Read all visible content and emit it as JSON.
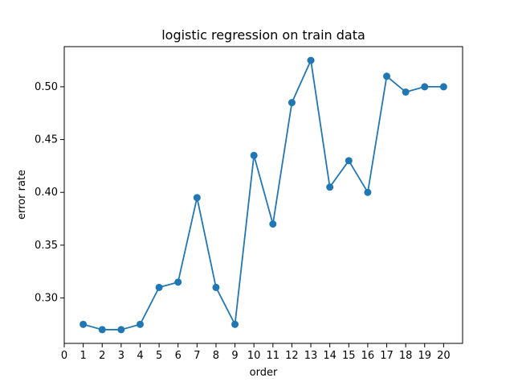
{
  "chart_data": {
    "type": "line",
    "title": "logistic regression on train data",
    "xlabel": "order",
    "ylabel": "error rate",
    "x": [
      1,
      2,
      3,
      4,
      5,
      6,
      7,
      8,
      9,
      10,
      11,
      12,
      13,
      14,
      15,
      16,
      17,
      18,
      19,
      20
    ],
    "series": [
      {
        "values": [
          0.275,
          0.27,
          0.27,
          0.275,
          0.31,
          0.315,
          0.395,
          0.31,
          0.275,
          0.435,
          0.37,
          0.485,
          0.525,
          0.405,
          0.43,
          0.4,
          0.51,
          0.495,
          0.5,
          0.5
        ],
        "color": "#1f77b4",
        "marker": "circle"
      }
    ],
    "xticks": [
      0,
      1,
      2,
      3,
      4,
      5,
      6,
      7,
      8,
      9,
      10,
      11,
      12,
      13,
      14,
      15,
      16,
      17,
      18,
      19,
      20
    ],
    "yticks": [
      0.3,
      0.35,
      0.4,
      0.45,
      0.5
    ],
    "ytick_labels": [
      "0.30",
      "0.35",
      "0.40",
      "0.45",
      "0.50"
    ],
    "xlim": [
      0,
      21
    ],
    "ylim": [
      0.257,
      0.538
    ],
    "grid": false,
    "legend": "none"
  }
}
